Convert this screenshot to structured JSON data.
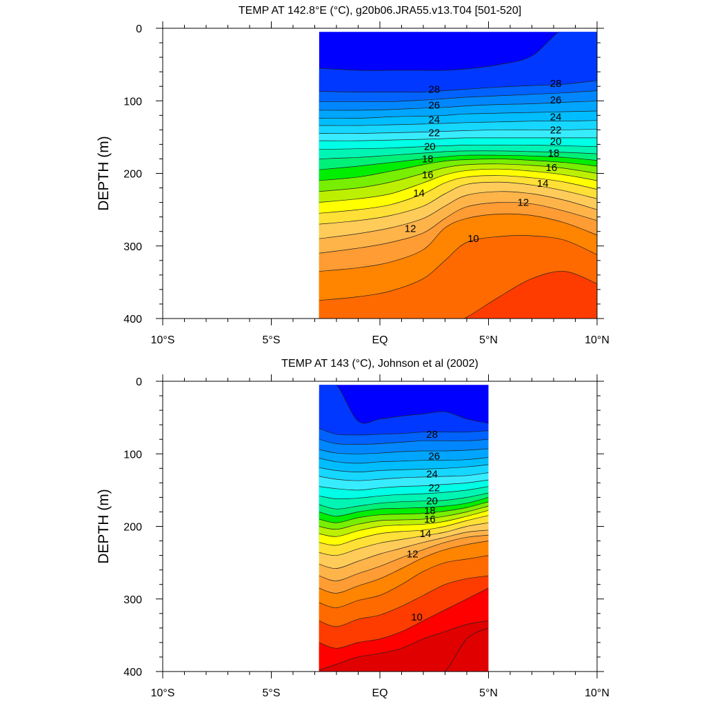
{
  "chart_data": [
    {
      "type": "heatmap",
      "title": "TEMP AT 142.8°E (°C), g20b06.JRA55.v13.T04 [501-520]",
      "xlabel": "",
      "ylabel": "DEPTH (m)",
      "xlim": [
        -10,
        10
      ],
      "ylim": [
        400,
        0
      ],
      "x_ticks": [
        -10,
        -5,
        0,
        5,
        10
      ],
      "x_tick_labels": [
        "10°S",
        "5°S",
        "EQ",
        "5°N",
        "10°N"
      ],
      "y_ticks": [
        0,
        100,
        200,
        300,
        400
      ],
      "y_tick_labels": [
        "0",
        "100",
        "200",
        "300",
        "400"
      ],
      "data_lat_range": [
        -2.8,
        10
      ],
      "data_depth_range": [
        5,
        400
      ],
      "contour_interval": 1,
      "lat": [
        -2.8,
        -1,
        0.5,
        2,
        3,
        4,
        5.5,
        7,
        8.5,
        10
      ],
      "isotherm_depths": [
        {
          "temp": 29,
          "depth": [
            55,
            58,
            58,
            58,
            58,
            56,
            50,
            38,
            0,
            0
          ]
        },
        {
          "temp": 28,
          "depth": [
            87,
            88,
            88,
            88,
            86,
            84,
            81,
            79,
            77,
            72
          ]
        },
        {
          "temp": 27,
          "depth": [
            101,
            101,
            101,
            99,
            97,
            95,
            93,
            91,
            89,
            86
          ]
        },
        {
          "temp": 26,
          "depth": [
            113,
            113,
            112,
            110,
            109,
            107,
            105,
            104,
            102,
            100
          ]
        },
        {
          "temp": 25,
          "depth": [
            124,
            124,
            122,
            121,
            120,
            118,
            117,
            116,
            115,
            114
          ]
        },
        {
          "temp": 24,
          "depth": [
            134,
            134,
            133,
            132,
            131,
            130,
            129,
            128,
            128,
            127
          ]
        },
        {
          "temp": 23,
          "depth": [
            145,
            145,
            144,
            143,
            142,
            141,
            140,
            140,
            140,
            139
          ]
        },
        {
          "temp": 22,
          "depth": [
            155,
            155,
            154,
            153,
            152,
            151,
            151,
            151,
            151,
            151
          ]
        },
        {
          "temp": 21,
          "depth": [
            167,
            166,
            165,
            163,
            162,
            161,
            161,
            161,
            162,
            163
          ]
        },
        {
          "temp": 20,
          "depth": [
            180,
            178,
            175,
            172,
            170,
            169,
            169,
            170,
            171,
            173
          ]
        },
        {
          "temp": 19,
          "depth": [
            195,
            190,
            185,
            180,
            177,
            175,
            175,
            176,
            178,
            182
          ]
        },
        {
          "temp": 18,
          "depth": [
            210,
            205,
            197,
            188,
            183,
            181,
            180,
            182,
            185,
            190
          ]
        },
        {
          "temp": 17,
          "depth": [
            225,
            220,
            212,
            200,
            192,
            188,
            187,
            189,
            193,
            200
          ]
        },
        {
          "temp": 16,
          "depth": [
            240,
            235,
            228,
            213,
            202,
            196,
            194,
            197,
            202,
            210
          ]
        },
        {
          "temp": 15,
          "depth": [
            255,
            250,
            243,
            228,
            213,
            205,
            203,
            206,
            212,
            222
          ]
        },
        {
          "temp": 14,
          "depth": [
            270,
            265,
            258,
            245,
            228,
            215,
            212,
            216,
            224,
            235
          ]
        },
        {
          "temp": 13,
          "depth": [
            290,
            283,
            275,
            262,
            245,
            230,
            225,
            228,
            237,
            250
          ]
        },
        {
          "temp": 12,
          "depth": [
            310,
            303,
            295,
            282,
            262,
            246,
            240,
            242,
            252,
            265
          ]
        },
        {
          "temp": 11,
          "depth": [
            335,
            330,
            322,
            305,
            275,
            262,
            256,
            258,
            268,
            285
          ]
        },
        {
          "temp": 10,
          "depth": [
            375,
            370,
            362,
            345,
            320,
            295,
            287,
            286,
            292,
            312
          ]
        },
        {
          "temp": 9,
          "depth": [
            415,
            415,
            415,
            415,
            410,
            398,
            370,
            345,
            335,
            352
          ]
        }
      ],
      "contour_labels": [
        {
          "text": "28",
          "lat": 2.5,
          "depth": 84
        },
        {
          "text": "26",
          "lat": 2.5,
          "depth": 106
        },
        {
          "text": "24",
          "lat": 2.5,
          "depth": 126
        },
        {
          "text": "22",
          "lat": 2.5,
          "depth": 144
        },
        {
          "text": "20",
          "lat": 2.3,
          "depth": 163
        },
        {
          "text": "18",
          "lat": 2.2,
          "depth": 180
        },
        {
          "text": "16",
          "lat": 2.2,
          "depth": 202
        },
        {
          "text": "14",
          "lat": 1.8,
          "depth": 227
        },
        {
          "text": "12",
          "lat": 1.4,
          "depth": 276
        },
        {
          "text": "10",
          "lat": 4.3,
          "depth": 290
        },
        {
          "text": "12",
          "lat": 6.6,
          "depth": 240
        },
        {
          "text": "14",
          "lat": 7.5,
          "depth": 214
        },
        {
          "text": "16",
          "lat": 7.9,
          "depth": 192
        },
        {
          "text": "18",
          "lat": 8.0,
          "depth": 172
        },
        {
          "text": "20",
          "lat": 8.1,
          "depth": 156
        },
        {
          "text": "22",
          "lat": 8.1,
          "depth": 140
        },
        {
          "text": "24",
          "lat": 8.1,
          "depth": 122
        },
        {
          "text": "26",
          "lat": 8.1,
          "depth": 99
        },
        {
          "text": "28",
          "lat": 8.1,
          "depth": 76
        }
      ]
    },
    {
      "type": "heatmap",
      "title": "TEMP AT 143 (°C), Johnson et al (2002)",
      "xlabel": "",
      "ylabel": "DEPTH (m)",
      "xlim": [
        -10,
        10
      ],
      "ylim": [
        400,
        0
      ],
      "x_ticks": [
        -10,
        -5,
        0,
        5,
        10
      ],
      "x_tick_labels": [
        "10°S",
        "5°S",
        "EQ",
        "5°N",
        "10°N"
      ],
      "y_ticks": [
        0,
        100,
        200,
        300,
        400
      ],
      "y_tick_labels": [
        "0",
        "100",
        "200",
        "300",
        "400"
      ],
      "data_lat_range": [
        -2.8,
        5
      ],
      "data_depth_range": [
        5,
        400
      ],
      "contour_interval": 1,
      "lat": [
        -2.8,
        -2,
        -1,
        0,
        1,
        2,
        3,
        4,
        5
      ],
      "isotherm_depths": [
        {
          "temp": 29,
          "depth": [
            0,
            5,
            55,
            52,
            48,
            45,
            42,
            52,
            58
          ]
        },
        {
          "temp": 28,
          "depth": [
            65,
            73,
            74,
            73,
            72,
            70,
            70,
            70,
            68
          ]
        },
        {
          "temp": 27,
          "depth": [
            80,
            86,
            87,
            86,
            84,
            82,
            82,
            82,
            80
          ]
        },
        {
          "temp": 26,
          "depth": [
            94,
            99,
            100,
            99,
            97,
            96,
            96,
            95,
            93
          ]
        },
        {
          "temp": 25,
          "depth": [
            106,
            111,
            113,
            111,
            110,
            109,
            109,
            108,
            105
          ]
        },
        {
          "temp": 24,
          "depth": [
            119,
            123,
            125,
            123,
            122,
            121,
            120,
            118,
            115
          ]
        },
        {
          "temp": 23,
          "depth": [
            131,
            135,
            137,
            135,
            133,
            132,
            131,
            130,
            126
          ]
        },
        {
          "temp": 22,
          "depth": [
            145,
            148,
            150,
            147,
            145,
            144,
            142,
            140,
            136
          ]
        },
        {
          "temp": 21,
          "depth": [
            158,
            162,
            161,
            158,
            156,
            155,
            153,
            150,
            145
          ]
        },
        {
          "temp": 20,
          "depth": [
            170,
            176,
            172,
            168,
            166,
            165,
            164,
            160,
            154
          ]
        },
        {
          "temp": 19,
          "depth": [
            180,
            186,
            180,
            176,
            175,
            174,
            172,
            168,
            160
          ]
        },
        {
          "temp": 18,
          "depth": [
            190,
            195,
            188,
            184,
            183,
            182,
            179,
            174,
            166
          ]
        },
        {
          "temp": 17,
          "depth": [
            200,
            204,
            197,
            192,
            191,
            190,
            186,
            180,
            172
          ]
        },
        {
          "temp": 16,
          "depth": [
            210,
            214,
            206,
            200,
            198,
            197,
            193,
            186,
            178
          ]
        },
        {
          "temp": 15,
          "depth": [
            222,
            226,
            217,
            210,
            207,
            205,
            200,
            192,
            185
          ]
        },
        {
          "temp": 14,
          "depth": [
            236,
            240,
            231,
            223,
            218,
            213,
            208,
            200,
            195
          ]
        },
        {
          "temp": 13,
          "depth": [
            252,
            258,
            248,
            238,
            230,
            222,
            215,
            208,
            205
          ]
        },
        {
          "temp": 12,
          "depth": [
            268,
            275,
            265,
            255,
            243,
            232,
            222,
            215,
            212
          ]
        },
        {
          "temp": 11,
          "depth": [
            285,
            292,
            282,
            272,
            258,
            243,
            232,
            225,
            220
          ]
        },
        {
          "temp": 10,
          "depth": [
            305,
            312,
            302,
            295,
            280,
            262,
            250,
            245,
            240
          ]
        },
        {
          "temp": 9,
          "depth": [
            330,
            338,
            328,
            322,
            310,
            295,
            280,
            272,
            268
          ]
        },
        {
          "temp": 8,
          "depth": [
            360,
            368,
            360,
            355,
            345,
            330,
            315,
            300,
            285
          ]
        },
        {
          "temp": 7,
          "depth": [
            398,
            390,
            380,
            375,
            368,
            355,
            345,
            335,
            330
          ]
        },
        {
          "temp": 6,
          "depth": [
            415,
            415,
            415,
            415,
            415,
            415,
            400,
            355,
            340
          ]
        }
      ],
      "contour_labels": [
        {
          "text": "28",
          "lat": 2.4,
          "depth": 73
        },
        {
          "text": "26",
          "lat": 2.5,
          "depth": 103
        },
        {
          "text": "24",
          "lat": 2.4,
          "depth": 128
        },
        {
          "text": "22",
          "lat": 2.5,
          "depth": 147
        },
        {
          "text": "20",
          "lat": 2.4,
          "depth": 165
        },
        {
          "text": "18",
          "lat": 2.3,
          "depth": 178
        },
        {
          "text": "16",
          "lat": 2.3,
          "depth": 190
        },
        {
          "text": "14",
          "lat": 2.1,
          "depth": 210
        },
        {
          "text": "12",
          "lat": 1.5,
          "depth": 238
        },
        {
          "text": "10",
          "lat": 1.7,
          "depth": 325
        }
      ]
    }
  ],
  "colors": {
    "levels_temp": [
      6,
      7,
      8,
      9,
      10,
      11,
      12,
      13,
      14,
      15,
      16,
      17,
      18,
      19,
      20,
      21,
      22,
      23,
      24,
      25,
      26,
      27,
      28,
      29,
      30
    ],
    "fill_colors_warm_to_cold_reference": "#0000ff,#0038ff,#0062ff,#0087ff,#00a5ff,#00bdff,#16d7ff,#38ecff,#00ffe6,#00f5b4,#00f078,#00ee00,#78ee00,#bcf000,#ffff00,#ffe036,#ffcc5a,#ffb44a,#ff9c34,#ff8400,#ff6a00,#ff3c00,#ff0000,#e00000",
    "contour_line": "#202020",
    "axis": "#000000",
    "background": "#ffffff"
  }
}
